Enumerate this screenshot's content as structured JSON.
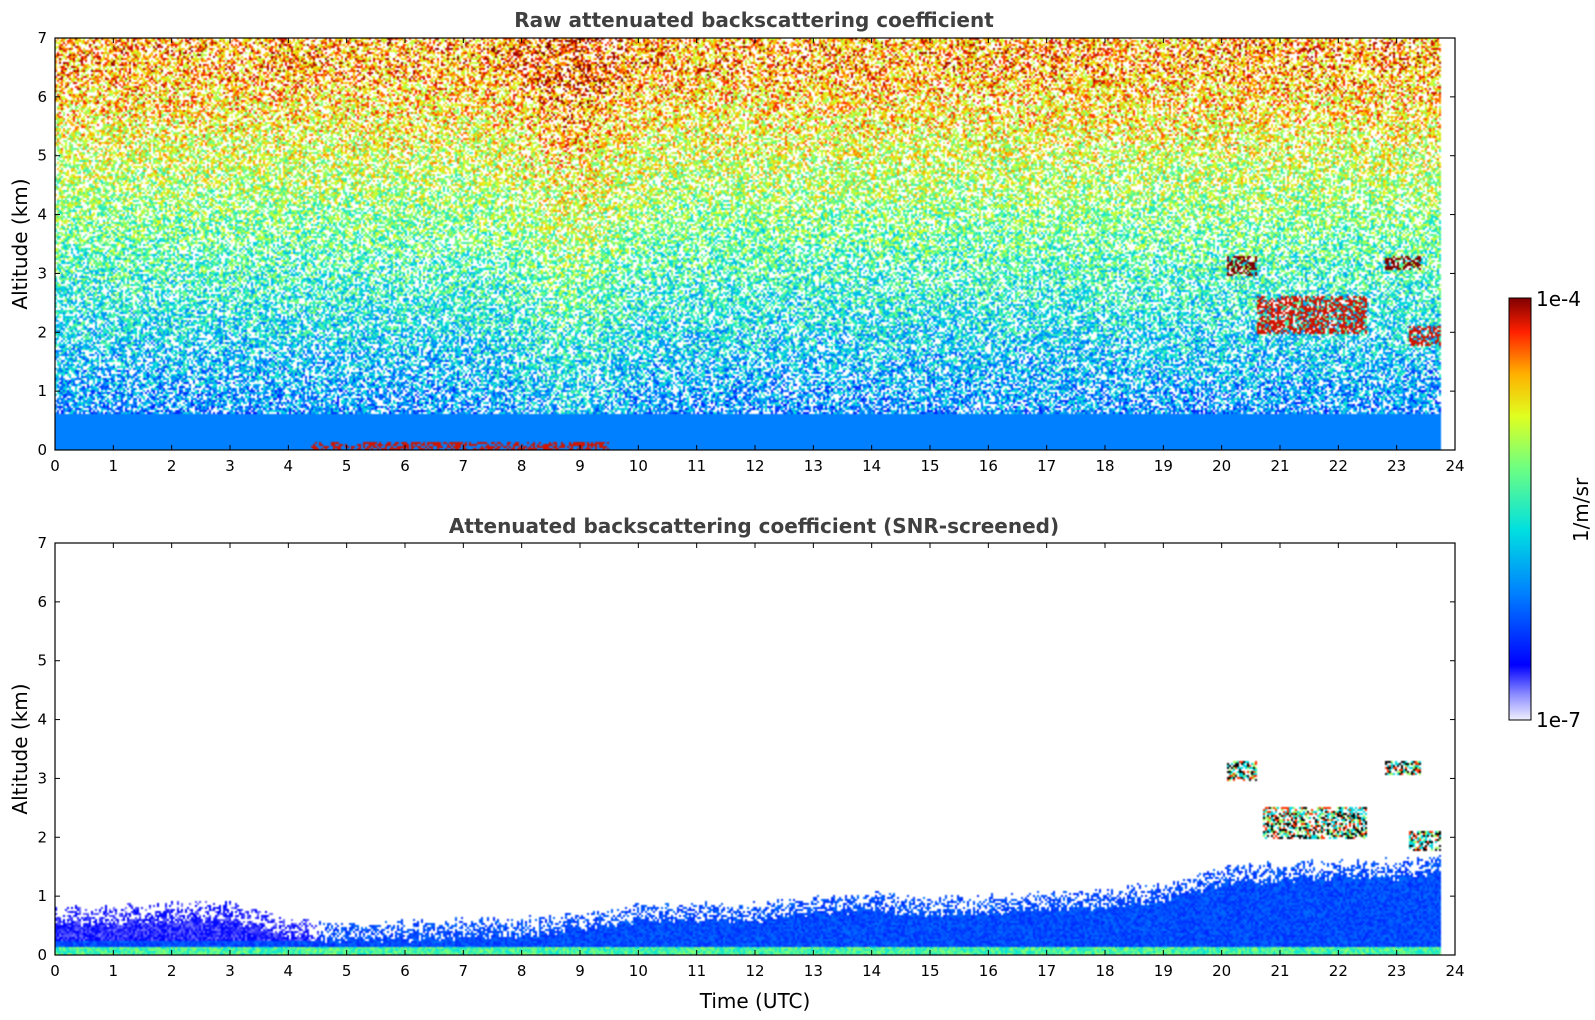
{
  "chart_data": [
    {
      "type": "heatmap",
      "title": "Raw attenuated backscattering coefficient",
      "xlabel": "",
      "ylabel": "Altitude (km)",
      "xlim": [
        0,
        24
      ],
      "ylim": [
        0,
        7
      ],
      "xticks": [
        "0",
        "1",
        "2",
        "3",
        "4",
        "5",
        "6",
        "7",
        "8",
        "9",
        "10",
        "11",
        "12",
        "13",
        "14",
        "15",
        "16",
        "17",
        "18",
        "19",
        "20",
        "21",
        "22",
        "23",
        "24"
      ],
      "yticks": [
        "0",
        "1",
        "2",
        "3",
        "4",
        "5",
        "6",
        "7"
      ],
      "grid": false,
      "colormap": "jet",
      "data_extent_hours": 23.75,
      "features": [
        {
          "desc": "surface layer",
          "x": [
            0,
            23.75
          ],
          "y": [
            0,
            0.6
          ],
          "level": 0.3
        },
        {
          "desc": "near-surface high backscatter",
          "x": [
            4.4,
            9.5
          ],
          "y": [
            0,
            0.12
          ],
          "level": 0.95
        },
        {
          "desc": "cloud",
          "x": [
            20.1,
            20.6
          ],
          "y": [
            3.0,
            3.3
          ],
          "level": 1.0
        },
        {
          "desc": "cloud",
          "x": [
            20.6,
            22.5
          ],
          "y": [
            2.0,
            2.6
          ],
          "level": 0.95
        },
        {
          "desc": "cloud",
          "x": [
            22.8,
            23.4
          ],
          "y": [
            3.1,
            3.3
          ],
          "level": 1.0
        },
        {
          "desc": "cloud",
          "x": [
            23.2,
            23.75
          ],
          "y": [
            1.8,
            2.1
          ],
          "level": 0.95
        }
      ]
    },
    {
      "type": "heatmap",
      "title": "Attenuated backscattering coefficient (SNR-screened)",
      "xlabel": "Time (UTC)",
      "ylabel": "Altitude (km)",
      "xlim": [
        0,
        24
      ],
      "ylim": [
        0,
        7
      ],
      "xticks": [
        "0",
        "1",
        "2",
        "3",
        "4",
        "5",
        "6",
        "7",
        "8",
        "9",
        "10",
        "11",
        "12",
        "13",
        "14",
        "15",
        "16",
        "17",
        "18",
        "19",
        "20",
        "21",
        "22",
        "23",
        "24"
      ],
      "yticks": [
        "0",
        "1",
        "2",
        "3",
        "4",
        "5",
        "6",
        "7"
      ],
      "grid": false,
      "colormap": "jet",
      "boundary_layer_top_km": [
        [
          0,
          0.8
        ],
        [
          1,
          0.82
        ],
        [
          2,
          0.85
        ],
        [
          3,
          0.88
        ],
        [
          4,
          0.6
        ],
        [
          5,
          0.5
        ],
        [
          6,
          0.55
        ],
        [
          7,
          0.6
        ],
        [
          8,
          0.6
        ],
        [
          9,
          0.7
        ],
        [
          10,
          0.85
        ],
        [
          11,
          0.85
        ],
        [
          12,
          0.85
        ],
        [
          13,
          1.0
        ],
        [
          14,
          1.05
        ],
        [
          15,
          0.95
        ],
        [
          16,
          1.0
        ],
        [
          17,
          1.05
        ],
        [
          18,
          1.1
        ],
        [
          19,
          1.2
        ],
        [
          20,
          1.5
        ],
        [
          21,
          1.55
        ],
        [
          22,
          1.6
        ],
        [
          23,
          1.6
        ],
        [
          23.75,
          1.7
        ]
      ],
      "clouds": [
        {
          "x": [
            20.1,
            20.6
          ],
          "y": [
            3.0,
            3.3
          ]
        },
        {
          "x": [
            20.7,
            22.5
          ],
          "y": [
            2.0,
            2.5
          ]
        },
        {
          "x": [
            22.8,
            23.4
          ],
          "y": [
            3.1,
            3.3
          ]
        },
        {
          "x": [
            23.2,
            23.75
          ],
          "y": [
            1.8,
            2.1
          ]
        }
      ]
    }
  ],
  "colorbar": {
    "label": "1/m/sr",
    "max_label": "1e-4",
    "min_label": "1e-7"
  }
}
